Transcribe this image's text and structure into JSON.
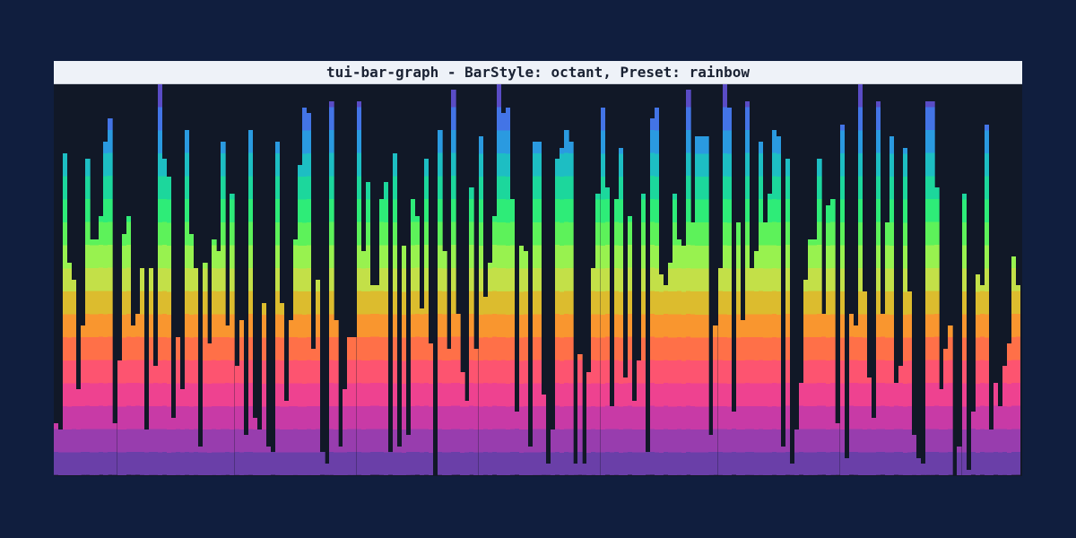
{
  "window": {
    "title": "tui-bar-graph - BarStyle: octant, Preset: rainbow"
  },
  "colors": {
    "page_background": "#101e3e",
    "chart_background": "#111827",
    "title_background": "#eef2f8",
    "rainbow_bands_bottom_to_top": [
      "#6a3fa8",
      "#983dae",
      "#c83aa6",
      "#ee4290",
      "#fd5470",
      "#ff7048",
      "#f9962f",
      "#dcbc2e",
      "#c3e048",
      "#98f24f",
      "#5df25a",
      "#2eec78",
      "#1cd79c",
      "#1dbec3",
      "#2a9ae0",
      "#4374e6",
      "#5a4cc6"
    ]
  },
  "chart_data": {
    "type": "bar",
    "bar_style": "octant",
    "preset": "rainbow",
    "ylim": [
      0,
      100
    ],
    "grid": false,
    "values": [
      13,
      12,
      82,
      55,
      50,
      22,
      38,
      81,
      60,
      60,
      66,
      85,
      91,
      13,
      29,
      62,
      66,
      38,
      41,
      53,
      12,
      53,
      28,
      100,
      81,
      77,
      15,
      35,
      22,
      88,
      62,
      53,
      7,
      55,
      34,
      60,
      58,
      85,
      38,
      72,
      28,
      40,
      10,
      88,
      15,
      12,
      44,
      7,
      6,
      85,
      44,
      19,
      40,
      61,
      80,
      94,
      93,
      32,
      50,
      6,
      3,
      96,
      40,
      8,
      22,
      35,
      35,
      96,
      58,
      75,
      48,
      48,
      71,
      75,
      6,
      82,
      8,
      59,
      10,
      71,
      66,
      43,
      81,
      34,
      0,
      88,
      57,
      32,
      99,
      41,
      26,
      19,
      74,
      32,
      87,
      46,
      55,
      66,
      100,
      93,
      94,
      71,
      16,
      59,
      57,
      8,
      85,
      85,
      21,
      3,
      12,
      81,
      84,
      88,
      85,
      3,
      31,
      3,
      26,
      53,
      72,
      94,
      74,
      17,
      71,
      84,
      25,
      66,
      19,
      29,
      72,
      6,
      91,
      94,
      52,
      48,
      55,
      72,
      61,
      59,
      99,
      65,
      87,
      87,
      87,
      10,
      38,
      53,
      100,
      94,
      16,
      65,
      40,
      96,
      53,
      57,
      85,
      65,
      72,
      88,
      87,
      7,
      81,
      3,
      12,
      23,
      50,
      61,
      61,
      81,
      41,
      69,
      71,
      13,
      90,
      5,
      41,
      38,
      100,
      47,
      25,
      15,
      96,
      41,
      65,
      87,
      23,
      28,
      84,
      47,
      10,
      5,
      3,
      96,
      96,
      74,
      22,
      32,
      38,
      0,
      8,
      72,
      2,
      16,
      52,
      48,
      90,
      12,
      23,
      17,
      28,
      34,
      56,
      48
    ]
  }
}
